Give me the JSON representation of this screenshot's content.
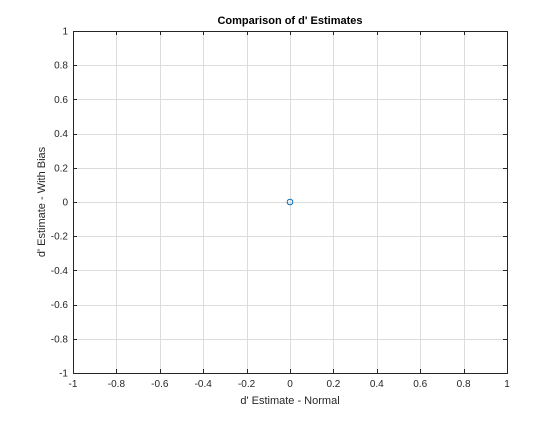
{
  "chart_data": {
    "type": "scatter",
    "title": "Comparison of d' Estimates",
    "xlabel": "d' Estimate - Normal",
    "ylabel": "d' Estimate - With Bias",
    "xlim": [
      -1,
      1
    ],
    "ylim": [
      -1,
      1
    ],
    "xticks": [
      -1,
      -0.8,
      -0.6,
      -0.4,
      -0.2,
      0,
      0.2,
      0.4,
      0.6,
      0.8,
      1
    ],
    "yticks": [
      -1,
      -0.8,
      -0.6,
      -0.4,
      -0.2,
      0,
      0.2,
      0.4,
      0.6,
      0.8,
      1
    ],
    "xtick_labels": [
      "-1",
      "-0.8",
      "-0.6",
      "-0.4",
      "-0.2",
      "0",
      "0.2",
      "0.4",
      "0.6",
      "0.8",
      "1"
    ],
    "ytick_labels": [
      "-1",
      "-0.8",
      "-0.6",
      "-0.4",
      "-0.2",
      "0",
      "0.2",
      "0.4",
      "0.6",
      "0.8",
      "1"
    ],
    "grid": true,
    "marker": "circle-open",
    "marker_color": "#0072bd",
    "axis_color": "#262626",
    "grid_color": "#dcdcdc",
    "series": [
      {
        "points": [
          {
            "x": 0,
            "y": 0
          }
        ]
      }
    ]
  }
}
